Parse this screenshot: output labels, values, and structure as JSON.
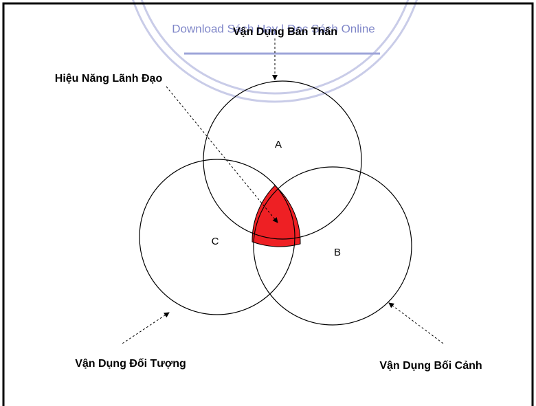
{
  "watermark": "Download Sách Hay | Đọc Sách Online",
  "labels": {
    "top": "Vận Dụng Bản Thân",
    "center": "Hiệu Năng Lãnh Đạo",
    "left": "Vận Dụng Đối Tượng",
    "right": "Vận Dụng Bối Cảnh"
  },
  "circles": [
    "A",
    "B",
    "C"
  ]
}
